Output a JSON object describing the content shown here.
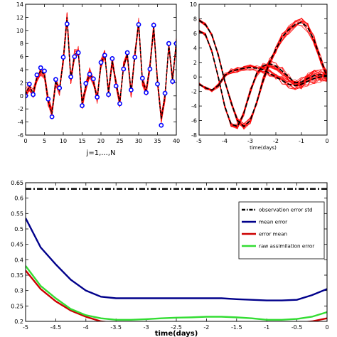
{
  "chart_data": [
    {
      "type": "line",
      "panel": "top-left",
      "xlabel": "j=1,...,N",
      "xlim": [
        0,
        40
      ],
      "ylim": [
        -6,
        14
      ],
      "xticks": [
        0,
        5,
        10,
        15,
        20,
        25,
        30,
        35,
        40
      ],
      "yticks": [
        -6,
        -4,
        -2,
        0,
        2,
        4,
        6,
        8,
        10,
        12,
        14
      ],
      "grid": false,
      "truth": {
        "x": [
          0,
          1,
          2,
          3,
          4,
          5,
          6,
          7,
          8,
          9,
          10,
          11,
          12,
          13,
          14,
          15,
          16,
          17,
          18,
          19,
          20,
          21,
          22,
          23,
          24,
          25,
          26,
          27,
          28,
          29,
          30,
          31,
          32,
          33,
          34,
          35,
          36,
          37,
          38,
          39,
          40
        ],
        "y": [
          0.2,
          1.5,
          0.4,
          2.8,
          3.8,
          3.2,
          -0.8,
          -2.7,
          2.2,
          0.8,
          5.5,
          12.0,
          2.5,
          6.3,
          6.8,
          -1.2,
          1.5,
          3.5,
          2.2,
          -0.5,
          4.8,
          6.5,
          0.5,
          5.3,
          2.0,
          -1.0,
          4.5,
          6.3,
          0.5,
          6.3,
          11.2,
          2.3,
          0.8,
          4.5,
          10.5,
          2.2,
          -3.5,
          0.0,
          7.8,
          2.5,
          8.3
        ],
        "color": "#000000"
      },
      "ensemble": {
        "color": "#ff0000"
      },
      "observations": {
        "x": [
          0,
          1,
          2,
          3,
          4,
          5,
          6,
          7,
          8,
          9,
          10,
          11,
          12,
          13,
          14,
          15,
          16,
          17,
          18,
          19,
          20,
          21,
          22,
          23,
          24,
          25,
          26,
          27,
          28,
          29,
          30,
          31,
          32,
          33,
          34,
          35,
          36,
          37,
          38,
          39,
          40
        ],
        "y": [
          0.0,
          1.8,
          0.2,
          3.2,
          4.3,
          3.8,
          -0.5,
          -3.2,
          2.5,
          1.2,
          5.9,
          11.0,
          2.9,
          6.0,
          6.6,
          -1.5,
          1.9,
          3.3,
          2.6,
          -0.2,
          5.1,
          6.2,
          0.2,
          5.7,
          1.5,
          -1.2,
          4.1,
          6.6,
          0.9,
          5.9,
          10.9,
          2.7,
          0.5,
          4.1,
          10.8,
          1.8,
          -4.5,
          0.4,
          8.0,
          2.2,
          8.0
        ],
        "color": "#0000ff"
      }
    },
    {
      "type": "line",
      "panel": "top-right",
      "xlabel": "time(days)",
      "xlim": [
        -5,
        0
      ],
      "ylim": [
        -8,
        10
      ],
      "xticks": [
        -5,
        -4,
        -3,
        -2,
        -1,
        0
      ],
      "yticks": [
        -8,
        -6,
        -4,
        -2,
        0,
        2,
        4,
        6,
        8,
        10
      ],
      "grid": false,
      "truth_curves": [
        {
          "x": [
            -5,
            -4.75,
            -4.5,
            -4.25,
            -4,
            -3.75,
            -3.5,
            -3.25,
            -3,
            -2.75,
            -2.5,
            -2.25,
            -2,
            -1.75,
            -1.5,
            -1.25,
            -1,
            -0.75,
            -0.5,
            -0.25,
            0
          ],
          "y": [
            7.8,
            7.2,
            5.8,
            3.0,
            -0.5,
            -3.5,
            -6.0,
            -6.8,
            -6.0,
            -3.5,
            -0.5,
            2.0,
            3.8,
            5.5,
            6.5,
            7.2,
            7.5,
            6.8,
            5.0,
            2.5,
            0.0
          ]
        },
        {
          "x": [
            -5,
            -4.75,
            -4.5,
            -4.25,
            -4,
            -3.75,
            -3.5,
            -3.25,
            -3,
            -2.75,
            -2.5,
            -2.25,
            -2,
            -1.75,
            -1.5,
            -1.25,
            -1,
            -0.75,
            -0.5,
            -0.25,
            0
          ],
          "y": [
            -1.0,
            -1.5,
            -1.8,
            -1.2,
            0.2,
            0.8,
            1.0,
            1.2,
            1.3,
            1.2,
            1.0,
            0.5,
            0.0,
            -0.5,
            -1.0,
            -1.2,
            -1.0,
            -0.6,
            -0.2,
            0.0,
            0.1
          ]
        },
        {
          "x": [
            -5,
            -4.75,
            -4.5,
            -4.25,
            -4,
            -3.75,
            -3.5,
            -3.25,
            -3,
            -2.75,
            -2.5,
            -2.25,
            -2,
            -1.75,
            -1.5,
            -1.25,
            -1,
            -0.75,
            -0.5,
            -0.25,
            0
          ],
          "y": [
            6.3,
            5.8,
            3.5,
            0.0,
            -4.0,
            -6.5,
            -6.8,
            -5.0,
            -2.0,
            0.5,
            1.5,
            1.8,
            1.5,
            0.8,
            0.0,
            -0.8,
            -0.7,
            -0.2,
            0.2,
            0.3,
            0.2
          ]
        }
      ],
      "truth_color": "#000000",
      "ensemble_color": "#ff0000"
    },
    {
      "type": "line",
      "panel": "bottom",
      "xlabel": "time(days)",
      "xlim": [
        -5,
        0
      ],
      "ylim": [
        0.2,
        0.65
      ],
      "xticks": [
        -5,
        -4.5,
        -4,
        -3.5,
        -3,
        -2.5,
        -2,
        -1.5,
        -1,
        -0.5,
        0
      ],
      "xtick_labels": [
        "-5",
        "-4.5",
        "-4",
        "-3.5",
        "-3",
        "-2.5",
        "-2",
        "-1.5",
        "-1",
        "-0.5",
        "0"
      ],
      "yticks": [
        0.2,
        0.25,
        0.3,
        0.35,
        0.4,
        0.45,
        0.5,
        0.55,
        0.6,
        0.65
      ],
      "ytick_labels": [
        "0.2",
        "0.25",
        "0.3",
        "0.35",
        "0.4",
        "0.45",
        "0.5",
        "0.55",
        "0.6",
        "0.65"
      ],
      "grid": false,
      "legend_position": "upper-right",
      "series": [
        {
          "name": "observation error std",
          "style": "dashdot",
          "color": "#000000",
          "x": [
            -5,
            0
          ],
          "y": [
            0.63,
            0.63
          ]
        },
        {
          "name": "mean error",
          "style": "solid",
          "color": "#00008b",
          "x": [
            -5,
            -4.75,
            -4.5,
            -4.25,
            -4,
            -3.75,
            -3.5,
            -3.25,
            -3,
            -2.75,
            -2.5,
            -2.25,
            -2,
            -1.75,
            -1.5,
            -1.25,
            -1,
            -0.75,
            -0.5,
            -0.25,
            0
          ],
          "y": [
            0.535,
            0.44,
            0.385,
            0.335,
            0.3,
            0.28,
            0.275,
            0.275,
            0.275,
            0.275,
            0.275,
            0.275,
            0.275,
            0.275,
            0.272,
            0.27,
            0.268,
            0.268,
            0.27,
            0.285,
            0.305
          ]
        },
        {
          "name": "error mean",
          "style": "solid",
          "color": "#cc0000",
          "x": [
            -5,
            -4.75,
            -4.5,
            -4.25,
            -4,
            -3.75,
            -3.5,
            -3.25,
            -3,
            -2.75,
            -2.5,
            -2.25,
            -2,
            -1.75,
            -1.5,
            -1.25,
            -1,
            -0.75,
            -0.5,
            -0.25,
            0
          ],
          "y": [
            0.365,
            0.305,
            0.265,
            0.235,
            0.215,
            0.2,
            0.195,
            0.195,
            0.195,
            0.195,
            0.195,
            0.195,
            0.198,
            0.198,
            0.195,
            0.195,
            0.193,
            0.193,
            0.195,
            0.2,
            0.21
          ]
        },
        {
          "name": "raw assimilation error",
          "style": "solid",
          "color": "#33dd33",
          "x": [
            -5,
            -4.75,
            -4.5,
            -4.25,
            -4,
            -3.75,
            -3.5,
            -3.25,
            -3,
            -2.75,
            -2.5,
            -2.25,
            -2,
            -1.75,
            -1.5,
            -1.25,
            -1,
            -0.75,
            -0.5,
            -0.25,
            0
          ],
          "y": [
            0.38,
            0.315,
            0.275,
            0.24,
            0.22,
            0.21,
            0.205,
            0.205,
            0.207,
            0.21,
            0.212,
            0.213,
            0.215,
            0.215,
            0.213,
            0.21,
            0.205,
            0.205,
            0.208,
            0.215,
            0.23
          ]
        }
      ]
    }
  ]
}
